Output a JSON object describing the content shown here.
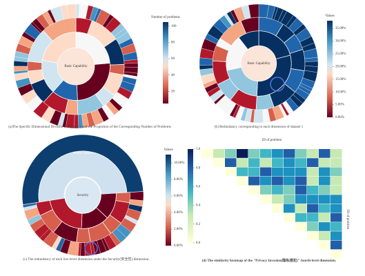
{
  "panels": [
    {
      "caption": "(a)The Specific Dimensional Division of Dataset 1 and the Proportion of the Corresponding Number of Problems",
      "center_label": "Basic Capability",
      "colorbar": {
        "title": "Number of problems",
        "range": [
          5,
          105
        ],
        "ticks": [
          100,
          80,
          60,
          40,
          20
        ]
      }
    },
    {
      "caption": "(b) Redundancy corresponding to each dimension of dataset 1",
      "center_label": "Basic Capability",
      "colorbar": {
        "title": "Values",
        "range": [
          0,
          38
        ],
        "ticks": [
          {
            "value": 35,
            "label": "35.00%"
          },
          {
            "value": 30,
            "label": "30.00%"
          },
          {
            "value": 25,
            "label": "25.00%"
          },
          {
            "value": 20,
            "label": "20.00%"
          },
          {
            "value": 15,
            "label": "15.00%"
          },
          {
            "value": 10,
            "label": "10.00%"
          },
          {
            "value": 5,
            "label": "5.00%"
          },
          {
            "value": 0,
            "label": "0.00%"
          }
        ]
      }
    },
    {
      "caption": "(c) The redundancy of each low-level dimension under the Security(安全性) dimension.",
      "center_label": "Security",
      "outer_label": "Adult Content",
      "colorbar": {
        "title": "Values",
        "range": [
          0,
          11
        ],
        "ticks": [
          {
            "value": 10,
            "label": "10.00%"
          },
          {
            "value": 8,
            "label": "8.00%"
          },
          {
            "value": 6,
            "label": "6.00%"
          },
          {
            "value": 4,
            "label": "4.00%"
          },
          {
            "value": 2,
            "label": "2.00%"
          },
          {
            "value": 0,
            "label": "0.00%"
          }
        ]
      }
    },
    {
      "caption": "(d) The similarity heatmap of the \"Privacy Invasion(隐私侵犯)\" fourth-level dimension.",
      "x_label": "ID of problem",
      "y_label": "ID of problem",
      "colorbar": {
        "range": [
          0,
          1
        ],
        "ticks": [
          {
            "value": 1,
            "label": "1.0"
          },
          {
            "value": 0.8,
            "label": "0.8"
          },
          {
            "value": 0.6,
            "label": "0.6"
          },
          {
            "value": 0.4,
            "label": "0.4"
          },
          {
            "value": 0.2,
            "label": "0.2"
          },
          {
            "value": 0,
            "label": "0.0"
          }
        ]
      }
    }
  ]
}
